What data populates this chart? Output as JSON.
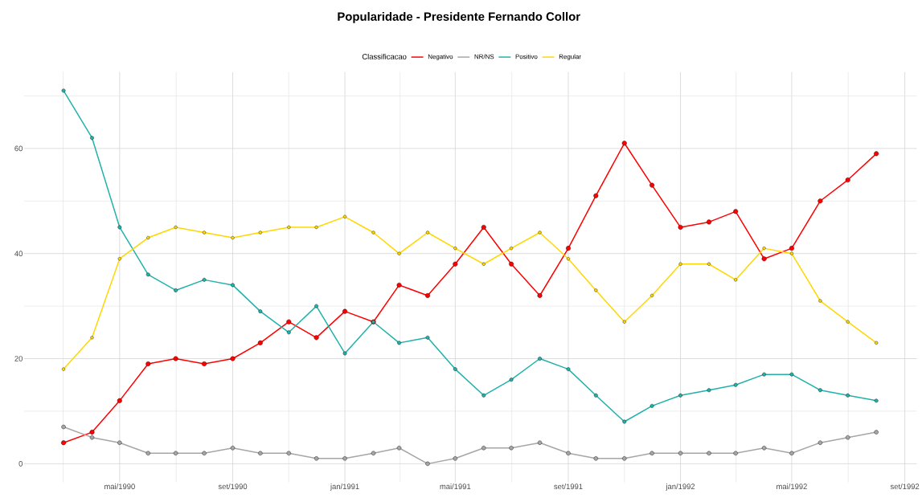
{
  "chart_data": {
    "type": "line",
    "title": "Popularidade - Presidente  Fernando Collor",
    "legend_title": "Classificacao",
    "x": [
      "1990-03-01",
      "1990-04-01",
      "1990-05-01",
      "1990-06-01",
      "1990-07-01",
      "1990-08-01",
      "1990-09-01",
      "1990-10-01",
      "1990-11-01",
      "1990-12-01",
      "1991-01-01",
      "1991-02-01",
      "1991-03-01",
      "1991-04-01",
      "1991-05-01",
      "1991-06-01",
      "1991-07-01",
      "1991-08-01",
      "1991-09-01",
      "1991-10-01",
      "1991-11-01",
      "1991-12-01",
      "1992-01-01",
      "1992-02-01",
      "1992-03-01",
      "1992-04-01",
      "1992-05-01",
      "1992-06-01",
      "1992-07-01",
      "1992-08-01"
    ],
    "series": [
      {
        "name": "Negativo",
        "color": "#ff0000",
        "values": [
          4,
          6,
          12,
          19,
          20,
          19,
          20,
          23,
          27,
          24,
          29,
          27,
          34,
          32,
          38,
          45,
          38,
          32,
          41,
          51,
          61,
          53,
          45,
          46,
          48,
          39,
          41,
          50,
          54,
          59
        ]
      },
      {
        "name": "NR/NS",
        "color": "#a6a6a6",
        "values": [
          7,
          5,
          4,
          2,
          2,
          2,
          3,
          2,
          2,
          1,
          1,
          2,
          3,
          0,
          1,
          3,
          3,
          4,
          2,
          1,
          1,
          2,
          2,
          2,
          2,
          3,
          2,
          4,
          5,
          6
        ]
      },
      {
        "name": "Positivo",
        "color": "#20b2aa",
        "values": [
          71,
          62,
          45,
          36,
          33,
          35,
          34,
          29,
          25,
          30,
          21,
          27,
          23,
          24,
          18,
          13,
          16,
          20,
          18,
          13,
          8,
          11,
          13,
          14,
          15,
          17,
          17,
          14,
          13,
          12
        ]
      },
      {
        "name": "Regular",
        "color": "#ffd700",
        "values": [
          18,
          24,
          39,
          43,
          45,
          44,
          43,
          44,
          45,
          45,
          47,
          44,
          40,
          44,
          41,
          38,
          41,
          44,
          39,
          33,
          27,
          32,
          38,
          38,
          35,
          41,
          40,
          31,
          27,
          23
        ]
      }
    ],
    "xlim": [
      "1990-01-17",
      "1992-09-14"
    ],
    "xticks": [
      {
        "value": "1990-05-01",
        "label": "mai/1990"
      },
      {
        "value": "1990-09-01",
        "label": "set/1990"
      },
      {
        "value": "1991-01-01",
        "label": "jan/1991"
      },
      {
        "value": "1991-05-01",
        "label": "mai/1991"
      },
      {
        "value": "1991-09-01",
        "label": "set/1991"
      },
      {
        "value": "1992-01-01",
        "label": "jan/1992"
      },
      {
        "value": "1992-05-01",
        "label": "mai/1992"
      },
      {
        "value": "1992-09-01",
        "label": "set/1992"
      }
    ],
    "ylim": [
      -3.55,
      74.55
    ],
    "yticks": [
      0,
      20,
      40,
      60
    ],
    "grid": true,
    "legend": "top",
    "marker": "circle",
    "line_style": "solid"
  }
}
